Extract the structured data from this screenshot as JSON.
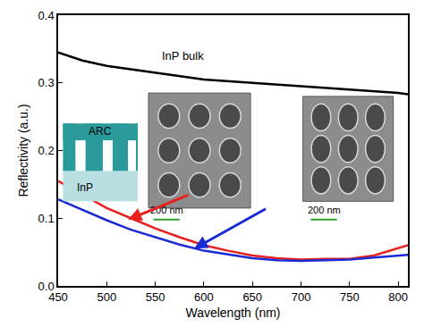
{
  "chart_data": {
    "type": "line",
    "x_label": "Wavelength (nm)",
    "y_label": "Reflectivity (a.u.)",
    "xlim": [
      450,
      810
    ],
    "xticks": [
      450,
      500,
      550,
      600,
      650,
      700,
      750,
      800
    ],
    "ylim": [
      0,
      0.4
    ],
    "yticks": [
      {
        "value": 0,
        "label": "0.0"
      },
      0.1,
      0.2,
      0.3,
      0.4
    ],
    "grid": false,
    "series": [
      {
        "name": "InP bulk",
        "color": "#000000",
        "x": [
          450,
          475,
          500,
          550,
          600,
          650,
          700,
          750,
          800,
          810
        ],
        "values": [
          0.345,
          0.333,
          0.325,
          0.315,
          0.305,
          0.3,
          0.295,
          0.29,
          0.285,
          0.283
        ]
      },
      {
        "color": "#e8201e",
        "x": [
          450,
          475,
          500,
          525,
          550,
          575,
          600,
          625,
          650,
          675,
          700,
          725,
          750,
          775,
          800,
          810
        ],
        "values": [
          0.155,
          0.135,
          0.115,
          0.1,
          0.085,
          0.072,
          0.06,
          0.052,
          0.045,
          0.041,
          0.039,
          0.04,
          0.04,
          0.045,
          0.055,
          0.06
        ]
      },
      {
        "color": "#1a2bd6",
        "x": [
          450,
          475,
          500,
          525,
          550,
          575,
          600,
          625,
          650,
          675,
          700,
          725,
          750,
          775,
          800,
          810
        ],
        "values": [
          0.128,
          0.112,
          0.097,
          0.083,
          0.072,
          0.061,
          0.052,
          0.046,
          0.041,
          0.038,
          0.037,
          0.038,
          0.039,
          0.042,
          0.045,
          0.046
        ]
      }
    ],
    "annotations": [
      "ARC",
      "InP",
      "200 nm",
      "200 nm"
    ]
  }
}
